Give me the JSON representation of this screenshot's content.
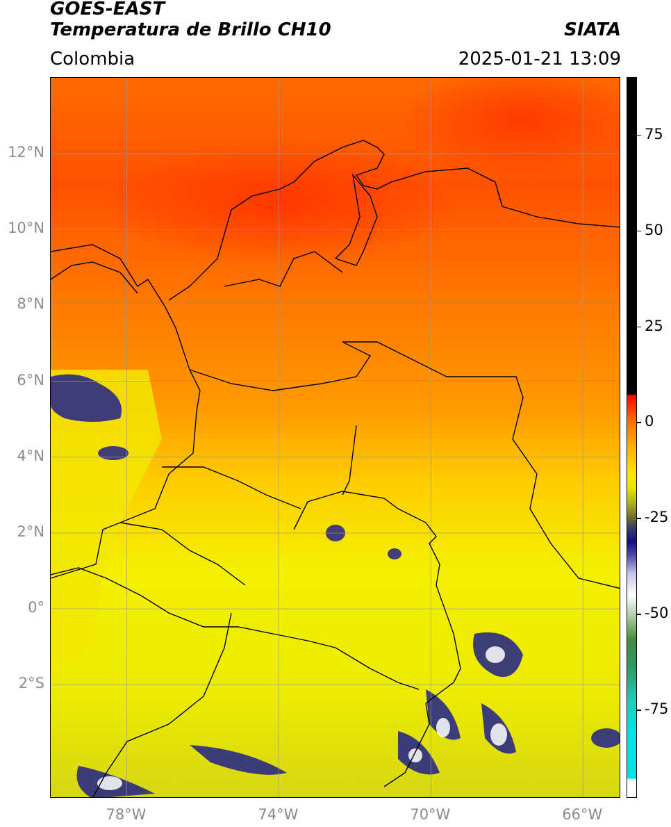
{
  "header": {
    "satellite": "GOES-EAST",
    "product": "Temperatura de Brillo CH10",
    "brand": "SIATA",
    "region": "Colombia",
    "timestamp": "2025-01-21 13:09"
  },
  "map": {
    "lat_labels": [
      "12°N",
      "10°N",
      "8°N",
      "6°N",
      "4°N",
      "2°N",
      "0°",
      "2°S"
    ],
    "lon_labels": [
      "78°W",
      "74°W",
      "70°W",
      "66°W"
    ],
    "extent": {
      "lon_min": -80,
      "lon_max": -65,
      "lat_min": -5.0,
      "lat_max": 14.0
    },
    "gridlines": true,
    "colors": {
      "warm": "#ff7000",
      "mid": "#ffc000",
      "cool": "#f0f000",
      "cloud": "#20208c"
    }
  },
  "colorbar": {
    "tick_labels": [
      "75",
      "50",
      "25",
      "0",
      "-25",
      "-50",
      "-75"
    ]
  }
}
